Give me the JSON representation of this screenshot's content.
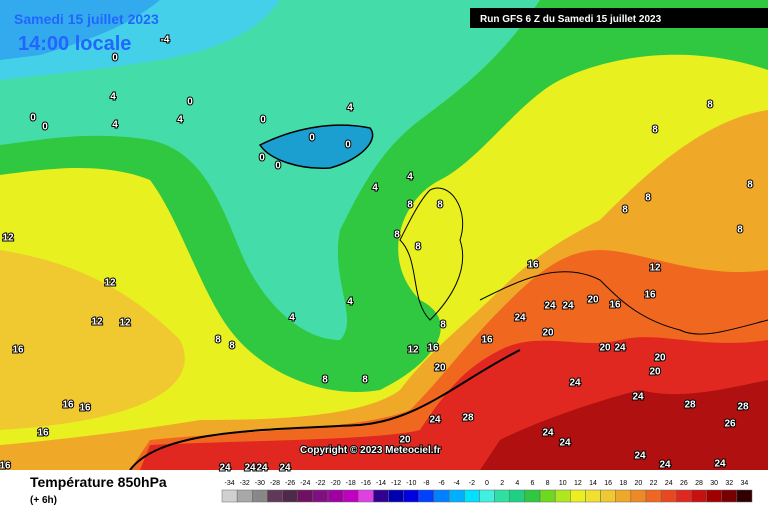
{
  "header": {
    "date": "Samedi 15 juillet 2023",
    "time": "14:00 locale",
    "run": "Run GFS 6 Z du Samedi 15 juillet 2023"
  },
  "copyright": "Copyright © 2023 Meteociel.fr",
  "legend": {
    "title": "Température 850hPa",
    "step": "(+ 6h)",
    "scale": [
      -34,
      -32,
      -30,
      -28,
      -26,
      -24,
      -22,
      -20,
      -18,
      -16,
      -14,
      -12,
      -10,
      -8,
      -6,
      -4,
      -2,
      0,
      2,
      4,
      6,
      8,
      10,
      12,
      14,
      16,
      18,
      20,
      22,
      24,
      26,
      28,
      30,
      32,
      34
    ],
    "colors": [
      "#d0d0d0",
      "#a8a8a8",
      "#888888",
      "#603858",
      "#502848",
      "#701060",
      "#801080",
      "#a000a0",
      "#c000c0",
      "#e040e0",
      "#300090",
      "#0000b0",
      "#0000e0",
      "#0040ff",
      "#0080ff",
      "#00b0ff",
      "#00e0ff",
      "#40f0e0",
      "#30e0a0",
      "#20d080",
      "#30c840",
      "#70d820",
      "#b0e820",
      "#e8f020",
      "#f0e030",
      "#f0c830",
      "#f0a828",
      "#f08828",
      "#f06820",
      "#e84820",
      "#e02820",
      "#c81010",
      "#a00000",
      "#780000",
      "#300000"
    ]
  },
  "contour_labels": [
    -4,
    0,
    0,
    4,
    4,
    4,
    0,
    0,
    0,
    0,
    4,
    0,
    0,
    0,
    4,
    4,
    8,
    8,
    8,
    8,
    16,
    4,
    4,
    8,
    12,
    16,
    16,
    12,
    12,
    12,
    16,
    16,
    16,
    16,
    16,
    24,
    24,
    20,
    16,
    24,
    20,
    20,
    24,
    20,
    20,
    20,
    24,
    24,
    28,
    24,
    28,
    20,
    24,
    24,
    24,
    24,
    24,
    24,
    24,
    24,
    24,
    12,
    16,
    8,
    8,
    8,
    8,
    8,
    8,
    8,
    8,
    8,
    8,
    28,
    26,
    12
  ]
}
